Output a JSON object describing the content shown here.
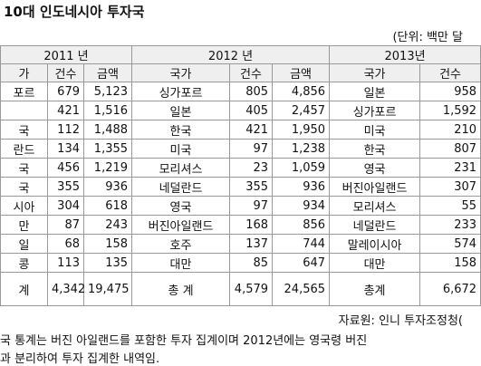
{
  "header": {
    "title": "10대 인도네시아 투자국",
    "unit": "(단위: 백만 달"
  },
  "table": {
    "years": [
      "2011 년",
      "2012 년",
      "2013년"
    ],
    "columns": [
      "가",
      "건수",
      "금액",
      "국가",
      "건수",
      "금액",
      "국가",
      "건수"
    ],
    "rows": [
      [
        "포르",
        "679",
        "5,123",
        "싱가포르",
        "805",
        "4,856",
        "일본",
        "958"
      ],
      [
        null,
        "421",
        "1,516",
        "일본",
        "405",
        "2,457",
        "싱가포르",
        "1,592"
      ],
      [
        "국",
        "112",
        "1,488",
        "한국",
        "421",
        "1,950",
        "미국",
        "210"
      ],
      [
        "란드",
        "134",
        "1,355",
        "미국",
        "97",
        "1,238",
        "한국",
        "807"
      ],
      [
        "국",
        "456",
        "1,219",
        "모리셔스",
        "23",
        "1,059",
        "영국",
        "231"
      ],
      [
        "국",
        "355",
        "936",
        "네덜란드",
        "355",
        "936",
        "버진아일랜드",
        "307"
      ],
      [
        "시아",
        "304",
        "618",
        "영국",
        "97",
        "934",
        "모리셔스",
        "55"
      ],
      [
        "만",
        "87",
        "243",
        "버진아일랜드",
        "168",
        "856",
        "네덜란드",
        "233"
      ],
      [
        "일",
        "68",
        "158",
        "호주",
        "137",
        "744",
        "말레이시아",
        "574"
      ],
      [
        "콩",
        "113",
        "135",
        "대만",
        "85",
        "647",
        "대만",
        "158"
      ]
    ],
    "total": [
      "계",
      "4,342",
      "19,475",
      "총 계",
      "4,579",
      "24,565",
      "총계",
      "6,672"
    ]
  },
  "footer": {
    "source": "자료원: 인니 투자조정청(",
    "notes": [
      "국 통계는 버진 아일랜드를 포함한 투자 집계이며 2012년에는 영국령 버진",
      "과 분리하여 투자 집계한 내역임."
    ]
  }
}
